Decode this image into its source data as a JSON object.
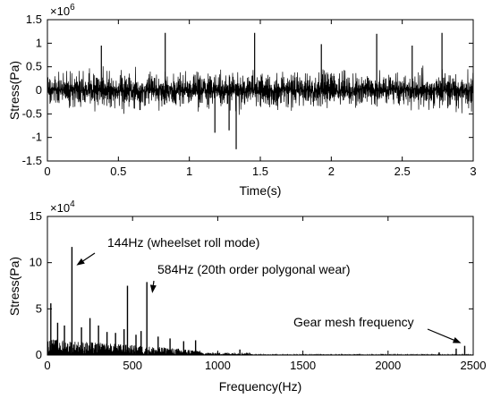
{
  "chart_data": [
    {
      "type": "line",
      "xlabel": "Time(s)",
      "ylabel": "Stress(Pa)",
      "y_exponent_label": "×10",
      "y_exponent_power": "6",
      "xlim": [
        0,
        3
      ],
      "ylim": [
        -1.5,
        1.5
      ],
      "x_ticks": [
        0,
        0.5,
        1,
        1.5,
        2,
        2.5,
        3
      ],
      "x_tick_labels": [
        "0",
        "0.5",
        "1",
        "1.5",
        "2",
        "2.5",
        "3"
      ],
      "y_ticks": [
        -1.5,
        -1,
        -0.5,
        0,
        0.5,
        1,
        1.5
      ],
      "y_tick_labels": [
        "-1.5",
        "-1",
        "-0.5",
        "0",
        "0.5",
        "1",
        "1.5"
      ],
      "grid": false,
      "series_color": "#000000",
      "signal": {
        "sample_count": 1500,
        "typical_amplitude": 0.45,
        "peaks": [
          {
            "x": 0.38,
            "y": 0.95
          },
          {
            "x": 0.83,
            "y": 1.22
          },
          {
            "x": 1.18,
            "y": -0.9
          },
          {
            "x": 1.28,
            "y": -0.85
          },
          {
            "x": 1.33,
            "y": -1.25
          },
          {
            "x": 1.46,
            "y": 1.22
          },
          {
            "x": 1.93,
            "y": 0.98
          },
          {
            "x": 2.32,
            "y": 1.2
          },
          {
            "x": 2.57,
            "y": 0.95
          },
          {
            "x": 2.78,
            "y": 1.22
          }
        ]
      }
    },
    {
      "type": "line",
      "xlabel": "Frequency(Hz)",
      "ylabel": "Stress(Pa)",
      "y_exponent_label": "×10",
      "y_exponent_power": "4",
      "xlim": [
        0,
        2500
      ],
      "ylim": [
        0,
        15
      ],
      "x_ticks": [
        0,
        500,
        1000,
        1500,
        2000,
        2500
      ],
      "x_tick_labels": [
        "0",
        "500",
        "1000",
        "1500",
        "2000",
        "2500"
      ],
      "y_ticks": [
        0,
        5,
        10,
        15
      ],
      "y_tick_labels": [
        "0",
        "5",
        "10",
        "15"
      ],
      "grid": false,
      "series_color": "#000000",
      "peaks": [
        {
          "x": 20,
          "y": 5.6
        },
        {
          "x": 60,
          "y": 3.5
        },
        {
          "x": 100,
          "y": 3.2
        },
        {
          "x": 144,
          "y": 11.7
        },
        {
          "x": 200,
          "y": 3.0
        },
        {
          "x": 250,
          "y": 4.0
        },
        {
          "x": 300,
          "y": 3.2
        },
        {
          "x": 350,
          "y": 2.5
        },
        {
          "x": 400,
          "y": 2.4
        },
        {
          "x": 450,
          "y": 2.8
        },
        {
          "x": 470,
          "y": 7.5
        },
        {
          "x": 520,
          "y": 2.2
        },
        {
          "x": 550,
          "y": 2.6
        },
        {
          "x": 584,
          "y": 7.9
        },
        {
          "x": 650,
          "y": 2.0
        },
        {
          "x": 720,
          "y": 1.8
        },
        {
          "x": 800,
          "y": 1.5
        },
        {
          "x": 870,
          "y": 1.6
        },
        {
          "x": 1130,
          "y": 0.6
        },
        {
          "x": 2300,
          "y": 0.3
        },
        {
          "x": 2400,
          "y": 0.7
        },
        {
          "x": 2450,
          "y": 1.0
        }
      ],
      "annotations": [
        {
          "text": "144Hz (wheelset roll mode)",
          "x": 144,
          "y": 11.7
        },
        {
          "text": "584Hz (20th order polygonal wear)",
          "x": 584,
          "y": 7.9
        },
        {
          "text": "Gear mesh frequency",
          "x": 2440,
          "y": 1.0
        }
      ]
    }
  ]
}
